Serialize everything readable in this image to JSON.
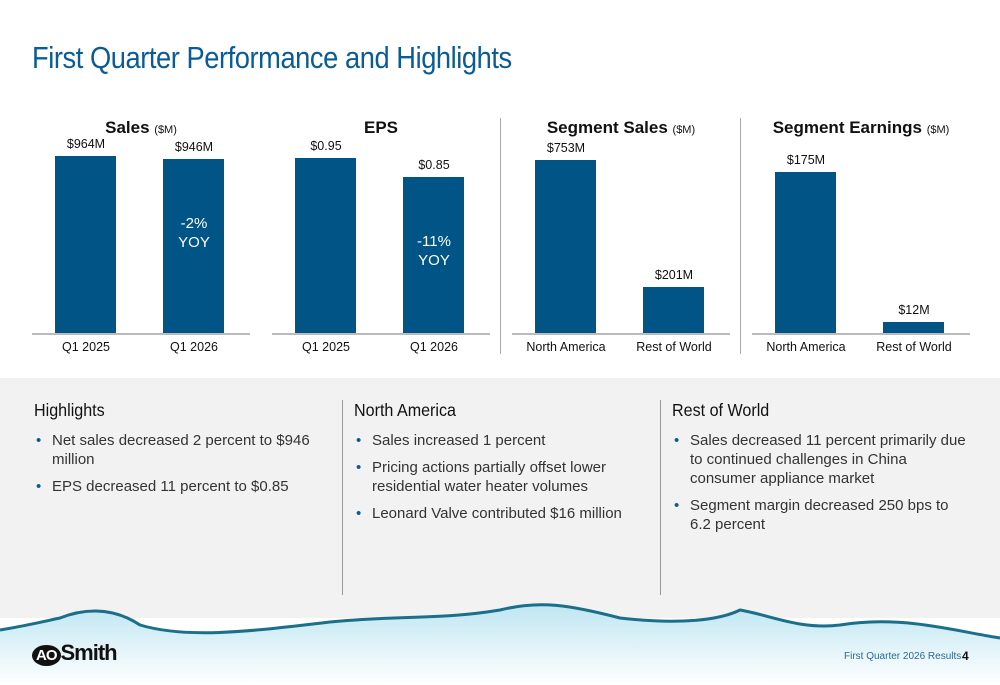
{
  "title": "First Quarter Performance and Highlights",
  "colors": {
    "bar": "#005587",
    "title": "#0a5c96"
  },
  "chart_data": [
    {
      "type": "bar",
      "title": "Sales",
      "unit": "($M)",
      "categories": [
        "Q1 2025",
        "Q1 2026"
      ],
      "values": [
        964,
        946
      ],
      "data_labels": [
        "$964M",
        "$946M"
      ],
      "annotation": {
        "bar": 1,
        "lines": [
          "-2%",
          "YOY"
        ]
      },
      "ylim": [
        0,
        1000
      ]
    },
    {
      "type": "bar",
      "title": "EPS",
      "unit": "",
      "categories": [
        "Q1 2025",
        "Q1 2026"
      ],
      "values": [
        0.95,
        0.85
      ],
      "data_labels": [
        "$0.95",
        "$0.85"
      ],
      "annotation": {
        "bar": 1,
        "lines": [
          "-11%",
          "YOY"
        ]
      },
      "ylim": [
        0,
        1.0
      ]
    },
    {
      "type": "bar",
      "title": "Segment Sales",
      "unit": "($M)",
      "categories": [
        "North America",
        "Rest of World"
      ],
      "values": [
        753,
        201
      ],
      "data_labels": [
        "$753M",
        "$201M"
      ],
      "ylim": [
        0,
        800
      ]
    },
    {
      "type": "bar",
      "title": "Segment Earnings",
      "unit": "($M)",
      "categories": [
        "North America",
        "Rest of World"
      ],
      "values": [
        175,
        12
      ],
      "data_labels": [
        "$175M",
        "$12M"
      ],
      "ylim": [
        0,
        200
      ]
    }
  ],
  "columns": [
    {
      "heading": "Highlights",
      "bullets": [
        "Net sales decreased 2 percent to $946 million",
        "EPS decreased 11 percent to $0.85"
      ]
    },
    {
      "heading": "North America",
      "bullets": [
        "Sales increased 1 percent",
        "Pricing actions partially offset lower residential water heater volumes",
        "Leonard Valve contributed $16 million"
      ]
    },
    {
      "heading": "Rest of World",
      "bullets": [
        "Sales decreased 11 percent primarily due to continued challenges in China consumer appliance market",
        "Segment margin decreased 250 bps to 6.2 percent"
      ]
    }
  ],
  "logo": {
    "mark": "AO",
    "text": "Smith"
  },
  "footer": {
    "text": "First Quarter 2026 Results",
    "page": "4"
  }
}
